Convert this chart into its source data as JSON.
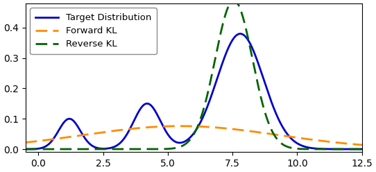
{
  "xlim": [
    -0.5,
    12.5
  ],
  "ylim": [
    -0.01,
    0.48
  ],
  "xticks": [
    0.0,
    2.5,
    5.0,
    7.5,
    10.0,
    12.5
  ],
  "yticks": [
    0.0,
    0.1,
    0.2,
    0.3,
    0.4
  ],
  "target_peaks": [
    {
      "mu": 1.2,
      "sigma": 0.42,
      "amp": 0.1
    },
    {
      "mu": 4.2,
      "sigma": 0.52,
      "amp": 0.15
    },
    {
      "mu": 7.8,
      "sigma": 0.9,
      "amp": 0.38
    }
  ],
  "forward_kl": {
    "mu": 5.5,
    "sigma": 3.8,
    "peak": 0.076
  },
  "reverse_kl": {
    "mu": 7.55,
    "sigma": 0.72,
    "peak": 0.49
  },
  "target_color": "#0000cc",
  "forward_kl_color": "#ff8c00",
  "reverse_kl_color": "#006400",
  "target_linewidth": 2.0,
  "kl_linewidth": 2.0,
  "legend_labels": [
    "Target Distribution",
    "Forward KL",
    "Reverse KL"
  ],
  "figsize": [
    5.42,
    2.48
  ],
  "dpi": 100
}
